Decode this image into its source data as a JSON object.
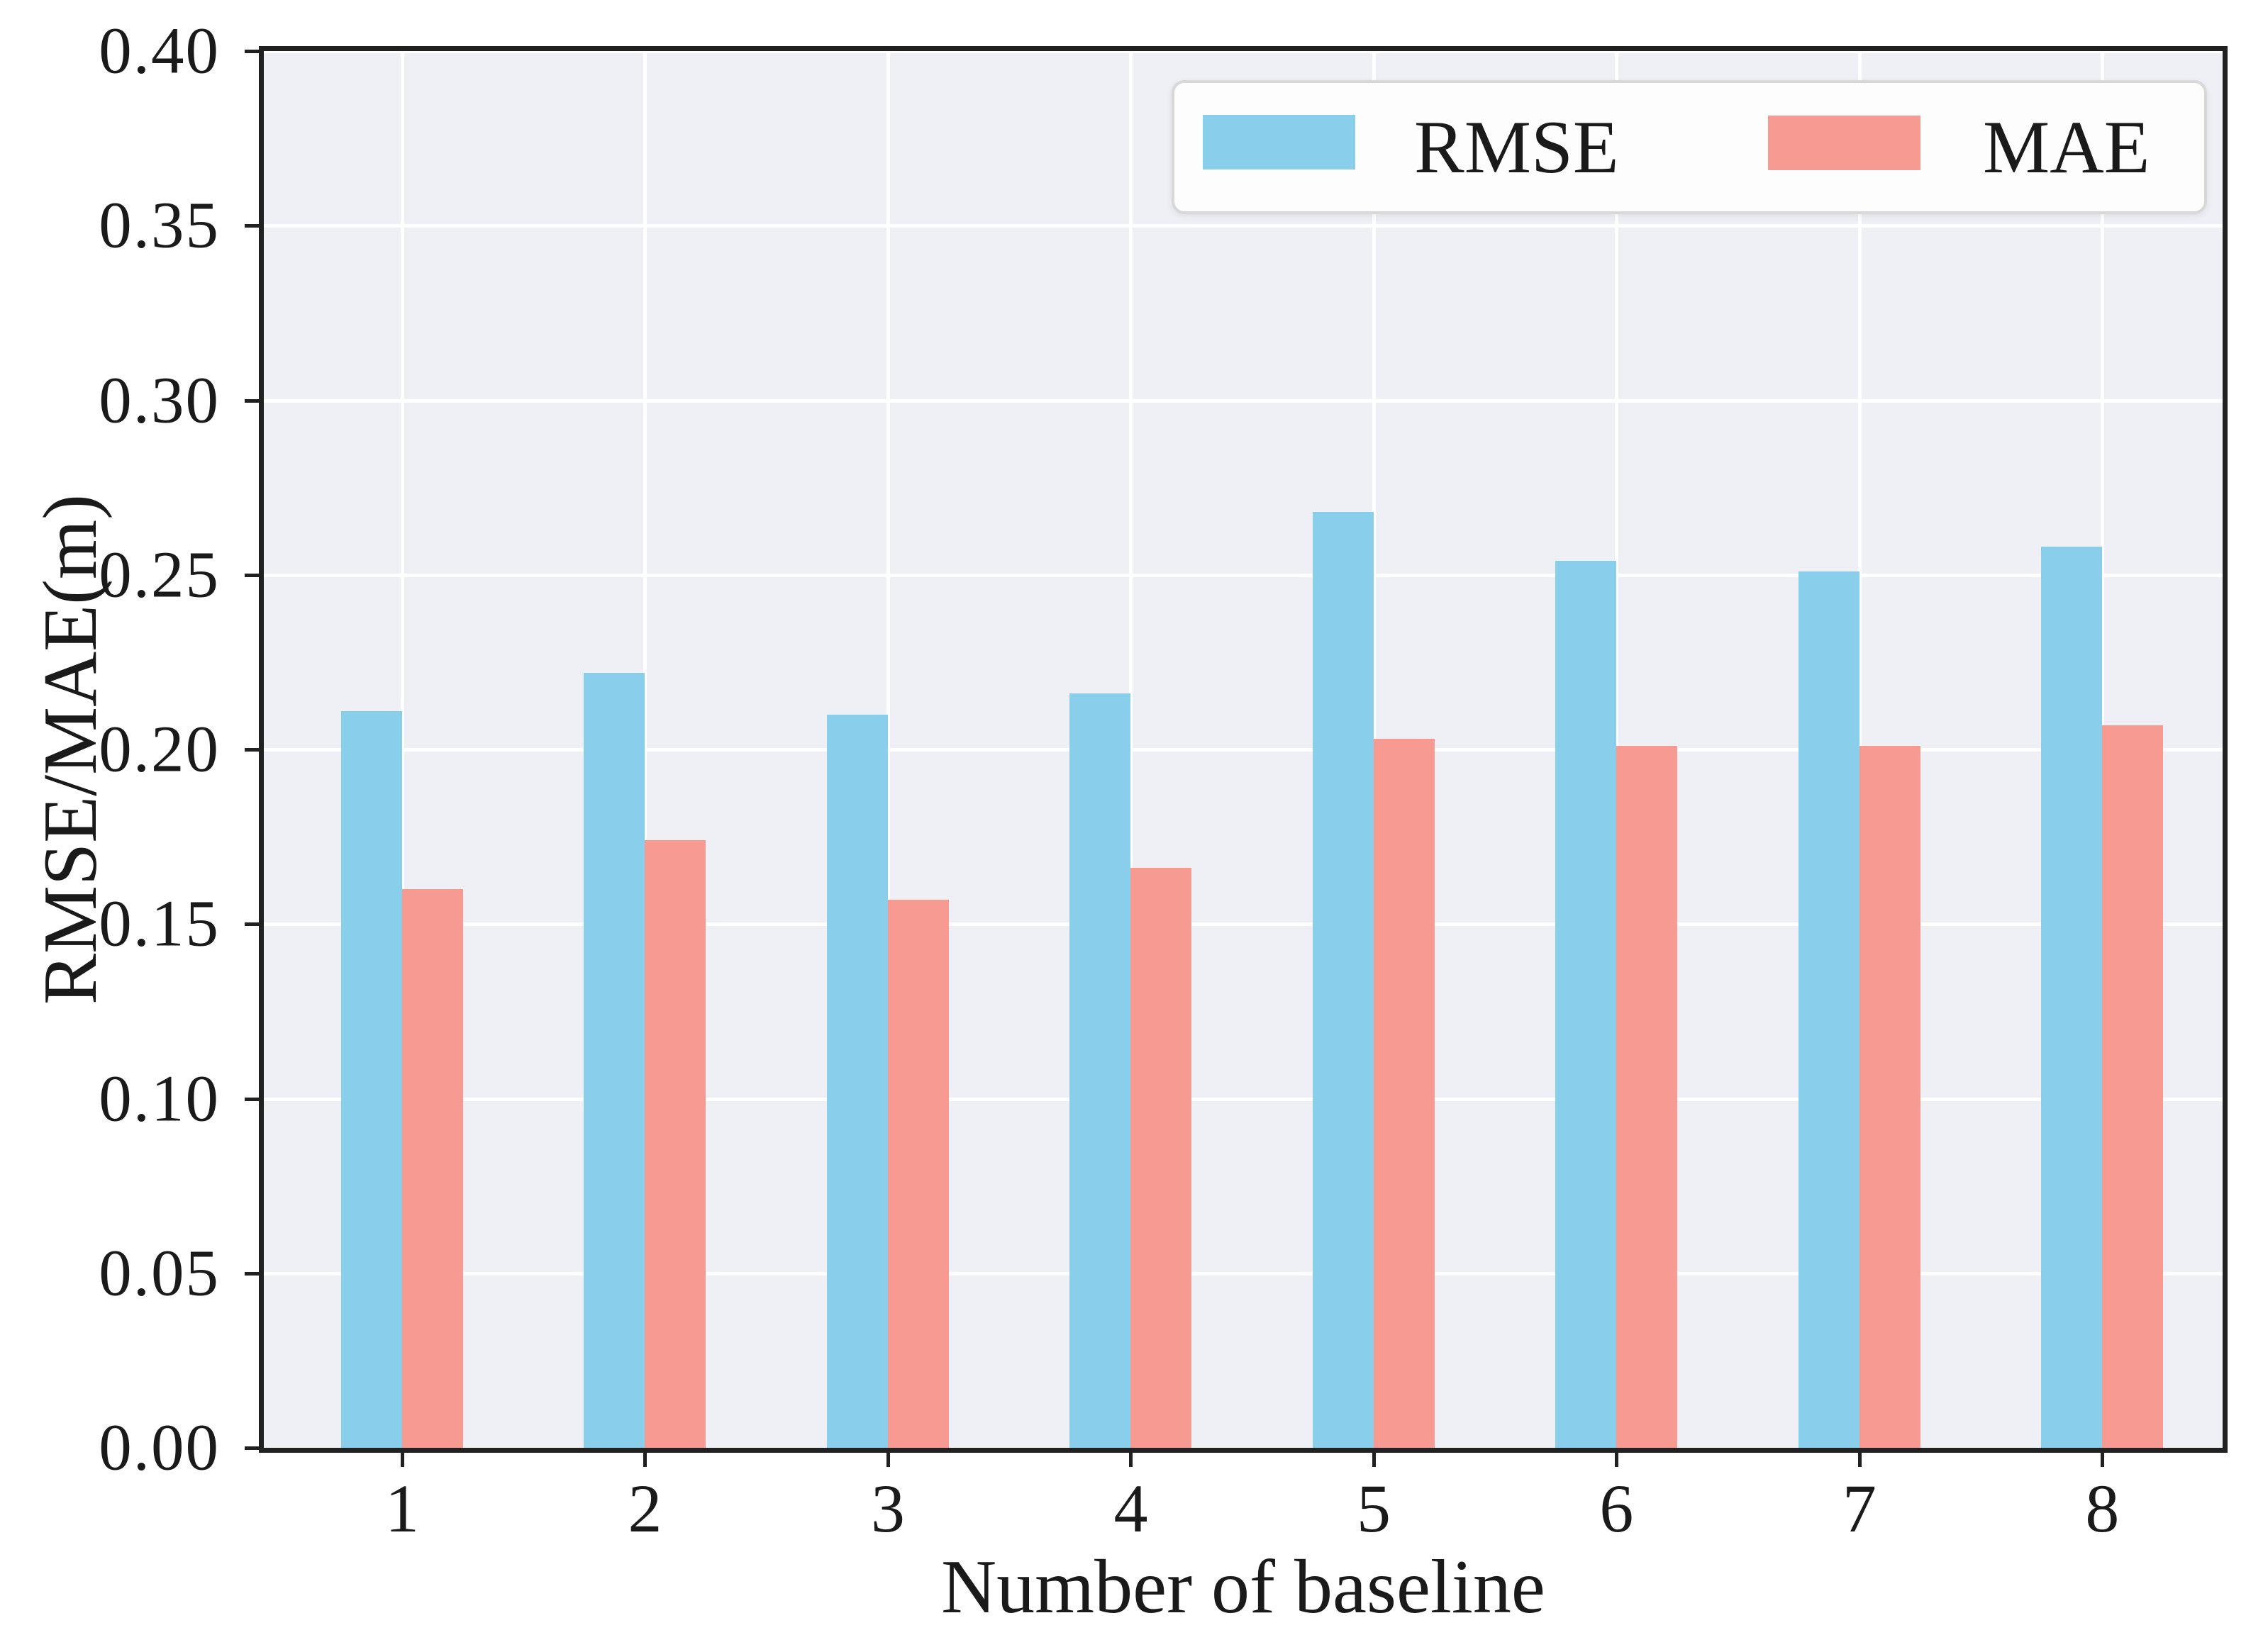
{
  "chart_data": {
    "type": "bar",
    "categories": [
      "1",
      "2",
      "3",
      "4",
      "5",
      "6",
      "7",
      "8"
    ],
    "series": [
      {
        "name": "RMSE",
        "color": "#89CEEA",
        "values": [
          0.211,
          0.222,
          0.21,
          0.216,
          0.268,
          0.254,
          0.251,
          0.258
        ]
      },
      {
        "name": "MAE",
        "color": "#F79B92",
        "values": [
          0.16,
          0.174,
          0.157,
          0.166,
          0.203,
          0.201,
          0.201,
          0.207
        ]
      }
    ],
    "title": "",
    "xlabel": "Number of baseline",
    "ylabel": "RMSE/MAE(m)",
    "ylim": [
      0,
      0.4
    ],
    "ytick_labels": [
      "0.00",
      "0.05",
      "0.10",
      "0.15",
      "0.20",
      "0.25",
      "0.30",
      "0.35",
      "0.40"
    ],
    "grid": true,
    "grid_color": "#FFFFFF",
    "plot_background": "#EEF0F5",
    "legend_position": "upper right"
  },
  "legend": {
    "items": [
      {
        "label": "RMSE"
      },
      {
        "label": "MAE"
      }
    ]
  }
}
